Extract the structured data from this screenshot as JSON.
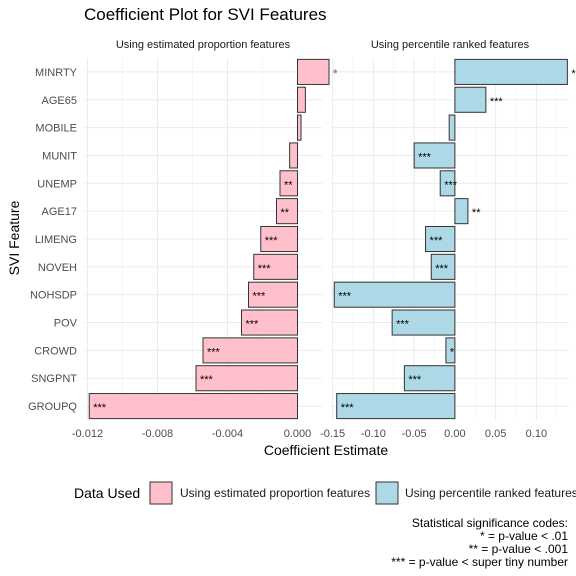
{
  "chart_data": {
    "type": "bar",
    "orientation": "horizontal",
    "title": "Coefficient Plot for SVI Features",
    "xlabel": "Coefficient Estimate",
    "ylabel": "SVI Feature",
    "grid": true,
    "legend_position": "bottom",
    "legend": {
      "title": "Data Used",
      "entries": [
        {
          "label": "Using estimated proportion features",
          "color": "#FFC0CB"
        },
        {
          "label": "Using percentile ranked features",
          "color": "#ADD8E6"
        }
      ]
    },
    "footnote": [
      "Statistical significance codes:",
      "* = p-value < .01",
      "** = p-value < .001",
      "*** = p-value < super tiny number"
    ],
    "categories": [
      "MINRTY",
      "AGE65",
      "MOBILE",
      "MUNIT",
      "UNEMP",
      "AGE17",
      "LIMENG",
      "NOVEH",
      "NOHSDP",
      "POV",
      "CROWD",
      "SNGPNT",
      "GROUPQ"
    ],
    "panels": [
      {
        "name": "Using estimated proportion features",
        "color": "#FFC0CB",
        "xlim": [
          -0.0122,
          0.0014
        ],
        "ticks": [
          -0.012,
          -0.008,
          -0.004,
          0.0
        ],
        "tick_labels": [
          "-0.012",
          "-0.008",
          "-0.004",
          "0.000"
        ],
        "values": [
          0.0018,
          0.00045,
          0.0002,
          -0.00045,
          -0.001,
          -0.0012,
          -0.0021,
          -0.0025,
          -0.0028,
          -0.0032,
          -0.0054,
          -0.0058,
          -0.0119
        ],
        "labels": [
          "*",
          "",
          "",
          "",
          "**",
          "**",
          "***",
          "***",
          "***",
          "***",
          "***",
          "***",
          "***"
        ]
      },
      {
        "name": "Using percentile ranked features",
        "color": "#ADD8E6",
        "xlim": [
          -0.152,
          0.14
        ],
        "ticks": [
          -0.15,
          -0.1,
          -0.05,
          0.0,
          0.05,
          0.1
        ],
        "tick_labels": [
          "-0.15",
          "-0.10",
          "-0.05",
          "0.00",
          "0.05",
          "0.10"
        ],
        "values": [
          0.138,
          0.038,
          -0.007,
          -0.05,
          -0.018,
          0.016,
          -0.036,
          -0.029,
          -0.148,
          -0.077,
          -0.011,
          -0.062,
          -0.145
        ],
        "labels": [
          "*",
          "***",
          "",
          "***",
          "***",
          "**",
          "***",
          "***",
          "***",
          "***",
          "*",
          "***",
          "***"
        ]
      }
    ]
  }
}
